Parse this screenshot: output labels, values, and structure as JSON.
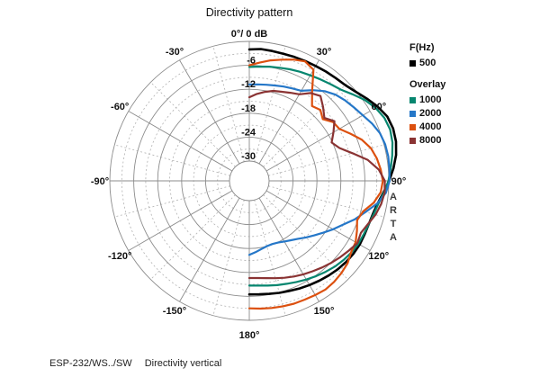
{
  "chart": {
    "title": "Directivity pattern",
    "apex_label": "0°/ 0 dB",
    "watermark": "ARTA",
    "caption": {
      "model": "ESP-232/WS../SW",
      "measurement": "Directivity vertical"
    }
  },
  "legend": {
    "frequency_header": "F(Hz)",
    "main_item": {
      "label": "500",
      "color": "#000000"
    },
    "overlay_header": "Overlay",
    "overlay_items": [
      {
        "label": "1000",
        "color": "#06866F"
      },
      {
        "label": "2000",
        "color": "#2577C8"
      },
      {
        "label": "4000",
        "color": "#DC500F"
      },
      {
        "label": "8000",
        "color": "#8A3333"
      }
    ]
  },
  "chart_data": {
    "type": "polar",
    "title": "Directivity pattern",
    "units": {
      "angle": "deg",
      "radial": "dB"
    },
    "radial_axis": {
      "max": 0,
      "min": -30,
      "solid_step_db": 6,
      "dashed_step_db": 3,
      "tick_labels": [
        {
          "db": -6,
          "text": "-6"
        },
        {
          "db": -12,
          "text": "-12"
        },
        {
          "db": -18,
          "text": "-18"
        },
        {
          "db": -24,
          "text": "-24"
        },
        {
          "db": -30,
          "text": "-30"
        }
      ]
    },
    "angle_axis": {
      "solid_step_deg": 30,
      "dashed_step_deg": 15,
      "labels": [
        {
          "deg": 30,
          "text": "30°"
        },
        {
          "deg": 60,
          "text": "60°"
        },
        {
          "deg": 90,
          "text": "90°"
        },
        {
          "deg": 120,
          "text": "120°"
        },
        {
          "deg": 150,
          "text": "150°"
        },
        {
          "deg": 180,
          "text": "180°"
        },
        {
          "deg": -150,
          "text": "-150°"
        },
        {
          "deg": -120,
          "text": "-120°"
        },
        {
          "deg": -90,
          "text": "-90°"
        },
        {
          "deg": -60,
          "text": "-60°"
        },
        {
          "deg": -30,
          "text": "-30°"
        }
      ]
    },
    "grid": {
      "solid_color": "#8C8C8C",
      "dashed_color": "#B2B2B2"
    },
    "legend_position": "right",
    "series": [
      {
        "name": "500",
        "color": "#000000",
        "width": 2.6,
        "points": [
          [
            0,
            -2.0
          ],
          [
            5,
            -1.8
          ],
          [
            10,
            -1.9
          ],
          [
            15,
            -2.0
          ],
          [
            20,
            -1.9
          ],
          [
            25,
            -1.8
          ],
          [
            30,
            -1.7
          ],
          [
            35,
            -1.5
          ],
          [
            40,
            -1.3
          ],
          [
            45,
            -1.0
          ],
          [
            50,
            -0.2
          ],
          [
            55,
            1.0
          ],
          [
            60,
            2.2
          ],
          [
            65,
            3.2
          ],
          [
            70,
            3.4
          ],
          [
            75,
            3.1
          ],
          [
            80,
            2.4
          ],
          [
            85,
            1.3
          ],
          [
            90,
            0.1
          ],
          [
            95,
            -1.2
          ],
          [
            100,
            -2.3
          ],
          [
            105,
            -2.9
          ],
          [
            110,
            -3.1
          ],
          [
            115,
            -3.1
          ],
          [
            120,
            -3.0
          ],
          [
            125,
            -3.1
          ],
          [
            130,
            -3.3
          ],
          [
            135,
            -3.6
          ],
          [
            140,
            -4.0
          ],
          [
            145,
            -4.4
          ],
          [
            150,
            -4.8
          ],
          [
            155,
            -5.2
          ],
          [
            160,
            -5.6
          ],
          [
            165,
            -5.9
          ],
          [
            170,
            -6.2
          ],
          [
            175,
            -6.4
          ],
          [
            180,
            -6.5
          ]
        ]
      },
      {
        "name": "1000",
        "color": "#06866F",
        "width": 2.2,
        "points": [
          [
            0,
            -6.4
          ],
          [
            5,
            -6.2
          ],
          [
            10,
            -5.9
          ],
          [
            15,
            -5.6
          ],
          [
            20,
            -5.2
          ],
          [
            25,
            -4.8
          ],
          [
            30,
            -4.4
          ],
          [
            35,
            -3.9
          ],
          [
            40,
            -3.3
          ],
          [
            45,
            -2.6
          ],
          [
            50,
            -1.2
          ],
          [
            55,
            0.4
          ],
          [
            60,
            1.6
          ],
          [
            65,
            2.4
          ],
          [
            70,
            2.6
          ],
          [
            75,
            2.2
          ],
          [
            80,
            1.4
          ],
          [
            85,
            0.6
          ],
          [
            90,
            -0.1
          ],
          [
            95,
            -1.1
          ],
          [
            100,
            -2.1
          ],
          [
            105,
            -2.7
          ],
          [
            110,
            -3.1
          ],
          [
            115,
            -3.3
          ],
          [
            120,
            -3.4
          ],
          [
            125,
            -3.7
          ],
          [
            130,
            -4.1
          ],
          [
            135,
            -4.6
          ],
          [
            140,
            -5.2
          ],
          [
            145,
            -5.8
          ],
          [
            150,
            -6.4
          ],
          [
            155,
            -7.0
          ],
          [
            160,
            -7.5
          ],
          [
            165,
            -7.9
          ],
          [
            170,
            -8.3
          ],
          [
            175,
            -8.6
          ],
          [
            180,
            -8.7
          ]
        ]
      },
      {
        "name": "2000",
        "color": "#2577C8",
        "width": 2.2,
        "points": [
          [
            0,
            -10.8
          ],
          [
            5,
            -10.7
          ],
          [
            10,
            -10.5
          ],
          [
            15,
            -10.2
          ],
          [
            20,
            -9.8
          ],
          [
            25,
            -9.4
          ],
          [
            30,
            -8.9
          ],
          [
            35,
            -7.2
          ],
          [
            40,
            -5.6
          ],
          [
            45,
            -4.4
          ],
          [
            50,
            -3.6
          ],
          [
            55,
            -2.9
          ],
          [
            60,
            -2.1
          ],
          [
            65,
            -1.0
          ],
          [
            70,
            -0.1
          ],
          [
            75,
            0.3
          ],
          [
            80,
            0.4
          ],
          [
            85,
            0.3
          ],
          [
            90,
            0.2
          ],
          [
            95,
            -0.6
          ],
          [
            100,
            -2.4
          ],
          [
            105,
            -4.8
          ],
          [
            110,
            -6.8
          ],
          [
            115,
            -9.0
          ],
          [
            120,
            -10.7
          ],
          [
            125,
            -12.3
          ],
          [
            130,
            -13.7
          ],
          [
            135,
            -14.9
          ],
          [
            140,
            -16.0
          ],
          [
            145,
            -16.8
          ],
          [
            150,
            -17.4
          ],
          [
            155,
            -17.9
          ],
          [
            160,
            -18.1
          ],
          [
            165,
            -18.0
          ],
          [
            170,
            -17.6
          ],
          [
            175,
            -17.0
          ],
          [
            180,
            -16.4
          ]
        ]
      },
      {
        "name": "4000",
        "color": "#DC500F",
        "width": 2.2,
        "points": [
          [
            0,
            -6.0
          ],
          [
            5,
            -5.2
          ],
          [
            10,
            -4.3
          ],
          [
            15,
            -3.5
          ],
          [
            20,
            -2.6
          ],
          [
            25,
            -1.9
          ],
          [
            30,
            -2.8
          ],
          [
            35,
            -7.5
          ],
          [
            40,
            -10.5
          ],
          [
            45,
            -9.8
          ],
          [
            50,
            -10.9
          ],
          [
            55,
            -9.3
          ],
          [
            60,
            -8.9
          ],
          [
            65,
            -7.0
          ],
          [
            70,
            -4.9
          ],
          [
            75,
            -3.4
          ],
          [
            80,
            -2.5
          ],
          [
            85,
            -1.9
          ],
          [
            90,
            -1.5
          ],
          [
            95,
            -1.9
          ],
          [
            100,
            -3.3
          ],
          [
            105,
            -5.4
          ],
          [
            110,
            -6.2
          ],
          [
            115,
            -5.2
          ],
          [
            120,
            -4.2
          ],
          [
            125,
            -3.8
          ],
          [
            130,
            -2.8
          ],
          [
            135,
            -2.3
          ],
          [
            140,
            -1.9
          ],
          [
            145,
            -1.7
          ],
          [
            150,
            -1.9
          ],
          [
            155,
            -2.1
          ],
          [
            160,
            -2.2
          ],
          [
            165,
            -2.4
          ],
          [
            170,
            -2.6
          ],
          [
            175,
            -2.8
          ],
          [
            180,
            -3.0
          ]
        ]
      },
      {
        "name": "8000",
        "color": "#8A3333",
        "width": 2.2,
        "points": [
          [
            0,
            -14.0
          ],
          [
            5,
            -13.1
          ],
          [
            10,
            -12.3
          ],
          [
            15,
            -11.6
          ],
          [
            20,
            -11.2
          ],
          [
            25,
            -10.6
          ],
          [
            30,
            -9.9
          ],
          [
            35,
            -8.1
          ],
          [
            40,
            -7.2
          ],
          [
            45,
            -8.8
          ],
          [
            50,
            -10.4
          ],
          [
            55,
            -8.9
          ],
          [
            60,
            -10.6
          ],
          [
            65,
            -12.2
          ],
          [
            70,
            -10.9
          ],
          [
            75,
            -8.2
          ],
          [
            80,
            -4.8
          ],
          [
            85,
            -2.4
          ],
          [
            90,
            -1.0
          ],
          [
            95,
            -0.9
          ],
          [
            100,
            -1.4
          ],
          [
            105,
            -2.2
          ],
          [
            110,
            -3.3
          ],
          [
            115,
            -4.1
          ],
          [
            120,
            -3.7
          ],
          [
            125,
            -4.5
          ],
          [
            130,
            -5.2
          ],
          [
            135,
            -5.9
          ],
          [
            140,
            -6.6
          ],
          [
            145,
            -7.3
          ],
          [
            150,
            -7.9
          ],
          [
            155,
            -8.5
          ],
          [
            160,
            -9.1
          ],
          [
            165,
            -9.7
          ],
          [
            170,
            -10.2
          ],
          [
            175,
            -10.5
          ],
          [
            180,
            -10.6
          ]
        ]
      }
    ]
  }
}
